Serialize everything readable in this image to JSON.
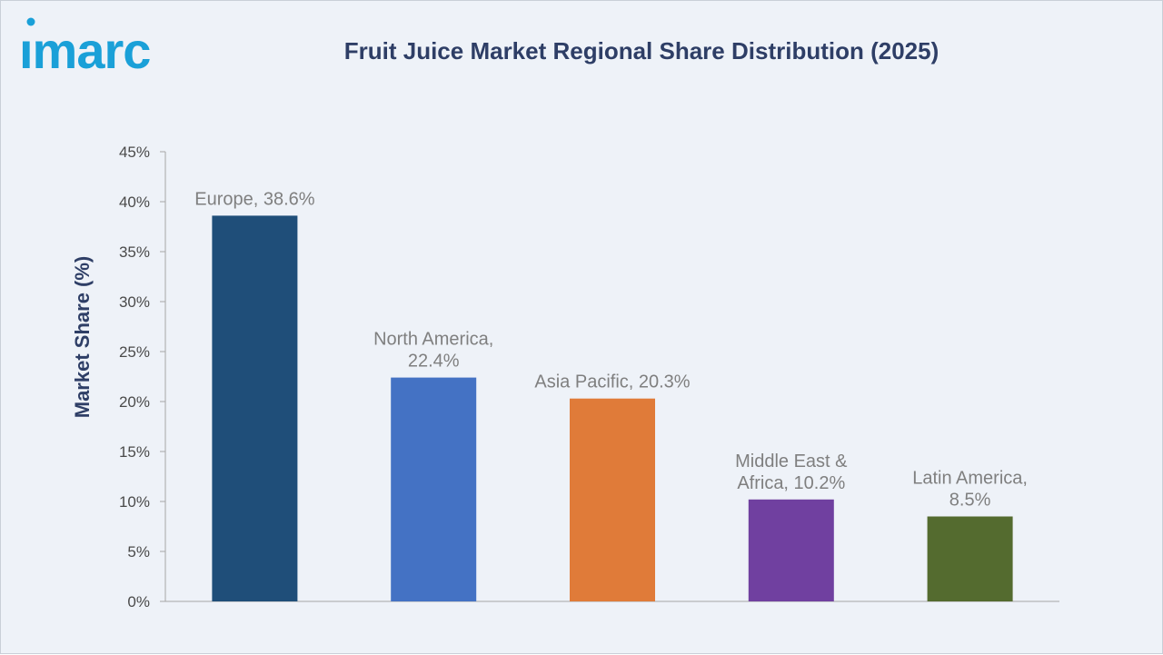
{
  "brand": {
    "logo_text": "imarc",
    "logo_color": "#1aa0d8"
  },
  "chart_data": {
    "type": "bar",
    "title": "Fruit Juice Market Regional Share Distribution (2025)",
    "ylabel": "Market Share (%)",
    "xlabel": "",
    "ylim": [
      0,
      45
    ],
    "y_ticks": [
      "0%",
      "5%",
      "10%",
      "15%",
      "20%",
      "25%",
      "30%",
      "35%",
      "40%",
      "45%"
    ],
    "categories": [
      "Europe",
      "North America",
      "Asia Pacific",
      "Middle East & Africa",
      "Latin America"
    ],
    "values": [
      38.6,
      22.4,
      20.3,
      10.2,
      8.5
    ],
    "data_labels": [
      [
        "Europe, 38.6%"
      ],
      [
        "North America,",
        "22.4%"
      ],
      [
        "Asia Pacific, 20.3%"
      ],
      [
        "Middle East &",
        "Africa, 10.2%"
      ],
      [
        "Latin America,",
        "8.5%"
      ]
    ],
    "colors": [
      "#1f4e79",
      "#4472c4",
      "#e07b39",
      "#7040a0",
      "#546b2f"
    ],
    "grid": false
  }
}
